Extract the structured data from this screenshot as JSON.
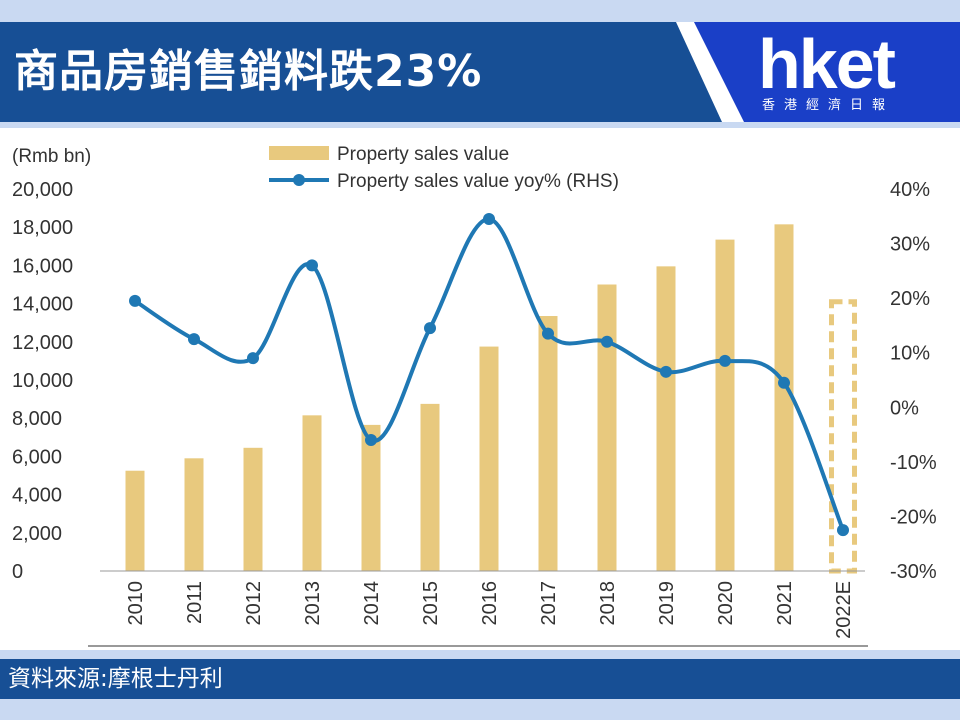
{
  "header": {
    "title": "商品房銷售銷料跌23%",
    "logo_text": "hket",
    "logo_subtitle": "香港經濟日報",
    "colors": {
      "title_bg": "#174f95",
      "logo_bg": "#1a3fc7",
      "band_bg": "#c9d9f2"
    }
  },
  "source": {
    "label": "資料來源:摩根士丹利"
  },
  "chart_data": {
    "type": "bar",
    "categories": [
      "2010",
      "2011",
      "2012",
      "2013",
      "2014",
      "2015",
      "2016",
      "2017",
      "2018",
      "2019",
      "2020",
      "2021",
      "2022E"
    ],
    "y_unit_label": "(Rmb bn)",
    "ylim": [
      0,
      20000
    ],
    "yticks": [
      "0",
      "2,000",
      "4,000",
      "6,000",
      "8,000",
      "10,000",
      "12,000",
      "14,000",
      "16,000",
      "18,000",
      "20,000"
    ],
    "ytick_values": [
      0,
      2000,
      4000,
      6000,
      8000,
      10000,
      12000,
      14000,
      16000,
      18000,
      20000
    ],
    "y2lim": [
      -30,
      40
    ],
    "y2ticks": [
      "-30%",
      "-20%",
      "-10%",
      "0%",
      "10%",
      "20%",
      "30%",
      "40%"
    ],
    "y2tick_values": [
      -30,
      -20,
      -10,
      0,
      10,
      20,
      30,
      40
    ],
    "legend_position": "top-center",
    "grid": false,
    "series": [
      {
        "name": "Property sales value",
        "type": "bar",
        "axis": "left",
        "color": "#e8c97e",
        "values": [
          5250,
          5900,
          6450,
          8150,
          7650,
          8750,
          11750,
          13350,
          15000,
          15950,
          17350,
          18150,
          14100
        ],
        "estimated_last": true
      },
      {
        "name": "Property sales value yoy% (RHS)",
        "type": "line",
        "axis": "right",
        "color": "#1f78b4",
        "values": [
          19.5,
          12.5,
          9.0,
          26.0,
          -6.0,
          14.5,
          34.5,
          13.5,
          12.0,
          6.5,
          8.5,
          4.5,
          -22.5
        ]
      }
    ]
  }
}
